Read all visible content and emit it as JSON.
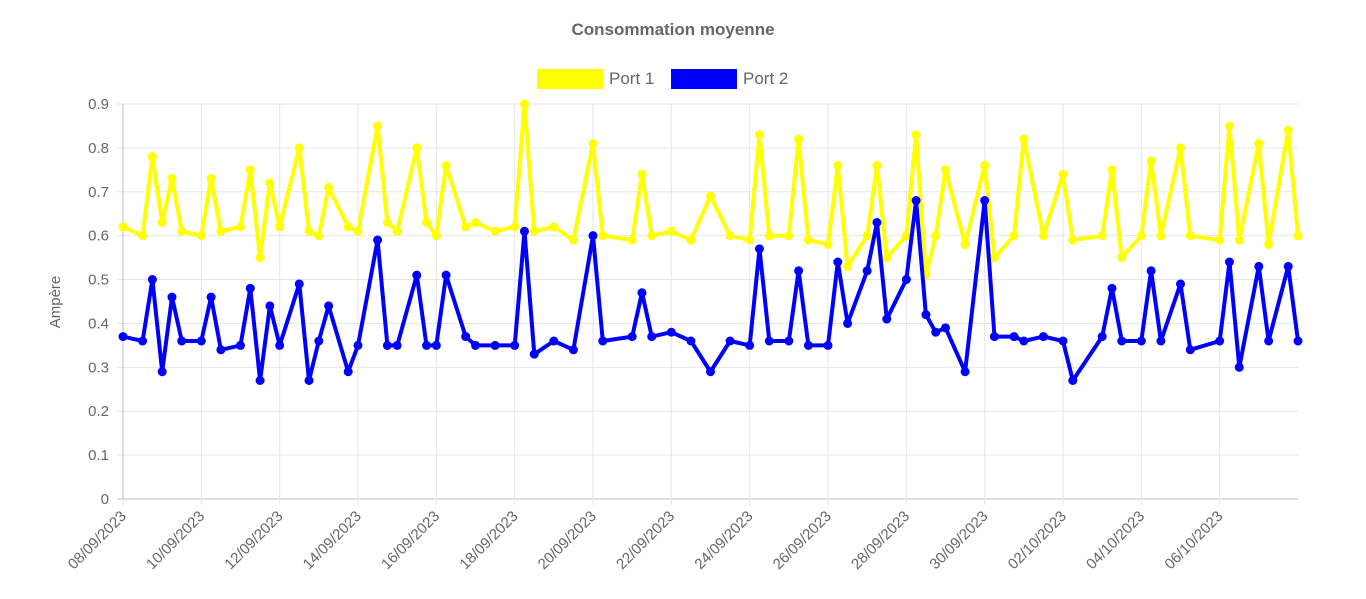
{
  "chart_data": {
    "type": "line",
    "title": "Consommation moyenne",
    "xlabel": "",
    "ylabel": "Ampère",
    "ylim": [
      0,
      0.9
    ],
    "y_ticks": [
      "0",
      "0.1",
      "0.2",
      "0.3",
      "0.4",
      "0.5",
      "0.6",
      "0.7",
      "0.8",
      "0.9"
    ],
    "x_range": [
      "2023-09-08",
      "2023-10-08"
    ],
    "x_tick_labels": [
      "08/09/2023",
      "10/09/2023",
      "12/09/2023",
      "14/09/2023",
      "16/09/2023",
      "18/09/2023",
      "20/09/2023",
      "22/09/2023",
      "24/09/2023",
      "26/09/2023",
      "28/09/2023",
      "30/09/2023",
      "02/10/2023",
      "04/10/2023",
      "06/10/2023"
    ],
    "grid": true,
    "legend_position": "top",
    "series": [
      {
        "name": "Port 1",
        "color": "#ffff00",
        "points": [
          {
            "x": "2023-09-08",
            "y": 0.62
          },
          {
            "x": "2023-09-08T12:00",
            "y": 0.6
          },
          {
            "x": "2023-09-08T18:00",
            "y": 0.78
          },
          {
            "x": "2023-09-09",
            "y": 0.63
          },
          {
            "x": "2023-09-09T06:00",
            "y": 0.73
          },
          {
            "x": "2023-09-09T12:00",
            "y": 0.61
          },
          {
            "x": "2023-09-10",
            "y": 0.6
          },
          {
            "x": "2023-09-10T06:00",
            "y": 0.73
          },
          {
            "x": "2023-09-10T12:00",
            "y": 0.61
          },
          {
            "x": "2023-09-11",
            "y": 0.62
          },
          {
            "x": "2023-09-11T06:00",
            "y": 0.75
          },
          {
            "x": "2023-09-11T12:00",
            "y": 0.55
          },
          {
            "x": "2023-09-11T18:00",
            "y": 0.72
          },
          {
            "x": "2023-09-12",
            "y": 0.62
          },
          {
            "x": "2023-09-12T12:00",
            "y": 0.8
          },
          {
            "x": "2023-09-12T18:00",
            "y": 0.61
          },
          {
            "x": "2023-09-13",
            "y": 0.6
          },
          {
            "x": "2023-09-13T06:00",
            "y": 0.71
          },
          {
            "x": "2023-09-13T18:00",
            "y": 0.62
          },
          {
            "x": "2023-09-14",
            "y": 0.61
          },
          {
            "x": "2023-09-14T12:00",
            "y": 0.85
          },
          {
            "x": "2023-09-14T18:00",
            "y": 0.63
          },
          {
            "x": "2023-09-15",
            "y": 0.61
          },
          {
            "x": "2023-09-15T12:00",
            "y": 0.8
          },
          {
            "x": "2023-09-15T18:00",
            "y": 0.63
          },
          {
            "x": "2023-09-16",
            "y": 0.6
          },
          {
            "x": "2023-09-16T06:00",
            "y": 0.76
          },
          {
            "x": "2023-09-16T18:00",
            "y": 0.62
          },
          {
            "x": "2023-09-17",
            "y": 0.63
          },
          {
            "x": "2023-09-17T12:00",
            "y": 0.61
          },
          {
            "x": "2023-09-18",
            "y": 0.62
          },
          {
            "x": "2023-09-18T06:00",
            "y": 0.9
          },
          {
            "x": "2023-09-18T12:00",
            "y": 0.61
          },
          {
            "x": "2023-09-19",
            "y": 0.62
          },
          {
            "x": "2023-09-19T12:00",
            "y": 0.59
          },
          {
            "x": "2023-09-20",
            "y": 0.81
          },
          {
            "x": "2023-09-20T06:00",
            "y": 0.6
          },
          {
            "x": "2023-09-21",
            "y": 0.59
          },
          {
            "x": "2023-09-21T06:00",
            "y": 0.74
          },
          {
            "x": "2023-09-21T12:00",
            "y": 0.6
          },
          {
            "x": "2023-09-22",
            "y": 0.61
          },
          {
            "x": "2023-09-22T12:00",
            "y": 0.59
          },
          {
            "x": "2023-09-23",
            "y": 0.69
          },
          {
            "x": "2023-09-23T12:00",
            "y": 0.6
          },
          {
            "x": "2023-09-24",
            "y": 0.59
          },
          {
            "x": "2023-09-24T06:00",
            "y": 0.83
          },
          {
            "x": "2023-09-24T12:00",
            "y": 0.6
          },
          {
            "x": "2023-09-25",
            "y": 0.6
          },
          {
            "x": "2023-09-25T06:00",
            "y": 0.82
          },
          {
            "x": "2023-09-25T12:00",
            "y": 0.59
          },
          {
            "x": "2023-09-26",
            "y": 0.58
          },
          {
            "x": "2023-09-26T06:00",
            "y": 0.76
          },
          {
            "x": "2023-09-26T12:00",
            "y": 0.53
          },
          {
            "x": "2023-09-27",
            "y": 0.6
          },
          {
            "x": "2023-09-27T06:00",
            "y": 0.76
          },
          {
            "x": "2023-09-27T12:00",
            "y": 0.55
          },
          {
            "x": "2023-09-28",
            "y": 0.6
          },
          {
            "x": "2023-09-28T06:00",
            "y": 0.83
          },
          {
            "x": "2023-09-28T12:00",
            "y": 0.51
          },
          {
            "x": "2023-09-28T18:00",
            "y": 0.6
          },
          {
            "x": "2023-09-29",
            "y": 0.75
          },
          {
            "x": "2023-09-29T12:00",
            "y": 0.58
          },
          {
            "x": "2023-09-30",
            "y": 0.76
          },
          {
            "x": "2023-09-30T06:00",
            "y": 0.55
          },
          {
            "x": "2023-09-30T18:00",
            "y": 0.6
          },
          {
            "x": "2023-10-01",
            "y": 0.82
          },
          {
            "x": "2023-10-01T12:00",
            "y": 0.6
          },
          {
            "x": "2023-10-02",
            "y": 0.74
          },
          {
            "x": "2023-10-02T06:00",
            "y": 0.59
          },
          {
            "x": "2023-10-03",
            "y": 0.6
          },
          {
            "x": "2023-10-03T06:00",
            "y": 0.75
          },
          {
            "x": "2023-10-03T12:00",
            "y": 0.55
          },
          {
            "x": "2023-10-04",
            "y": 0.6
          },
          {
            "x": "2023-10-04T06:00",
            "y": 0.77
          },
          {
            "x": "2023-10-04T12:00",
            "y": 0.6
          },
          {
            "x": "2023-10-05",
            "y": 0.8
          },
          {
            "x": "2023-10-05T06:00",
            "y": 0.6
          },
          {
            "x": "2023-10-06",
            "y": 0.59
          },
          {
            "x": "2023-10-06T06:00",
            "y": 0.85
          },
          {
            "x": "2023-10-06T12:00",
            "y": 0.59
          },
          {
            "x": "2023-10-07",
            "y": 0.81
          },
          {
            "x": "2023-10-07T06:00",
            "y": 0.58
          },
          {
            "x": "2023-10-07T18:00",
            "y": 0.84
          },
          {
            "x": "2023-10-08",
            "y": 0.6
          }
        ]
      },
      {
        "name": "Port 2",
        "color": "#0000ff",
        "points": [
          {
            "x": "2023-09-08",
            "y": 0.37
          },
          {
            "x": "2023-09-08T12:00",
            "y": 0.36
          },
          {
            "x": "2023-09-08T18:00",
            "y": 0.5
          },
          {
            "x": "2023-09-09",
            "y": 0.29
          },
          {
            "x": "2023-09-09T06:00",
            "y": 0.46
          },
          {
            "x": "2023-09-09T12:00",
            "y": 0.36
          },
          {
            "x": "2023-09-10",
            "y": 0.36
          },
          {
            "x": "2023-09-10T06:00",
            "y": 0.46
          },
          {
            "x": "2023-09-10T12:00",
            "y": 0.34
          },
          {
            "x": "2023-09-11",
            "y": 0.35
          },
          {
            "x": "2023-09-11T06:00",
            "y": 0.48
          },
          {
            "x": "2023-09-11T12:00",
            "y": 0.27
          },
          {
            "x": "2023-09-11T18:00",
            "y": 0.44
          },
          {
            "x": "2023-09-12",
            "y": 0.35
          },
          {
            "x": "2023-09-12T12:00",
            "y": 0.49
          },
          {
            "x": "2023-09-12T18:00",
            "y": 0.27
          },
          {
            "x": "2023-09-13",
            "y": 0.36
          },
          {
            "x": "2023-09-13T06:00",
            "y": 0.44
          },
          {
            "x": "2023-09-13T18:00",
            "y": 0.29
          },
          {
            "x": "2023-09-14",
            "y": 0.35
          },
          {
            "x": "2023-09-14T12:00",
            "y": 0.59
          },
          {
            "x": "2023-09-14T18:00",
            "y": 0.35
          },
          {
            "x": "2023-09-15",
            "y": 0.35
          },
          {
            "x": "2023-09-15T12:00",
            "y": 0.51
          },
          {
            "x": "2023-09-15T18:00",
            "y": 0.35
          },
          {
            "x": "2023-09-16",
            "y": 0.35
          },
          {
            "x": "2023-09-16T06:00",
            "y": 0.51
          },
          {
            "x": "2023-09-16T18:00",
            "y": 0.37
          },
          {
            "x": "2023-09-17",
            "y": 0.35
          },
          {
            "x": "2023-09-17T12:00",
            "y": 0.35
          },
          {
            "x": "2023-09-18",
            "y": 0.35
          },
          {
            "x": "2023-09-18T06:00",
            "y": 0.61
          },
          {
            "x": "2023-09-18T12:00",
            "y": 0.33
          },
          {
            "x": "2023-09-19",
            "y": 0.36
          },
          {
            "x": "2023-09-19T12:00",
            "y": 0.34
          },
          {
            "x": "2023-09-20",
            "y": 0.6
          },
          {
            "x": "2023-09-20T06:00",
            "y": 0.36
          },
          {
            "x": "2023-09-21",
            "y": 0.37
          },
          {
            "x": "2023-09-21T06:00",
            "y": 0.47
          },
          {
            "x": "2023-09-21T12:00",
            "y": 0.37
          },
          {
            "x": "2023-09-22",
            "y": 0.38
          },
          {
            "x": "2023-09-22T12:00",
            "y": 0.36
          },
          {
            "x": "2023-09-23",
            "y": 0.29
          },
          {
            "x": "2023-09-23T12:00",
            "y": 0.36
          },
          {
            "x": "2023-09-24",
            "y": 0.35
          },
          {
            "x": "2023-09-24T06:00",
            "y": 0.57
          },
          {
            "x": "2023-09-24T12:00",
            "y": 0.36
          },
          {
            "x": "2023-09-25",
            "y": 0.36
          },
          {
            "x": "2023-09-25T06:00",
            "y": 0.52
          },
          {
            "x": "2023-09-25T12:00",
            "y": 0.35
          },
          {
            "x": "2023-09-26",
            "y": 0.35
          },
          {
            "x": "2023-09-26T06:00",
            "y": 0.54
          },
          {
            "x": "2023-09-26T12:00",
            "y": 0.4
          },
          {
            "x": "2023-09-27",
            "y": 0.52
          },
          {
            "x": "2023-09-27T06:00",
            "y": 0.63
          },
          {
            "x": "2023-09-27T12:00",
            "y": 0.41
          },
          {
            "x": "2023-09-28",
            "y": 0.5
          },
          {
            "x": "2023-09-28T06:00",
            "y": 0.68
          },
          {
            "x": "2023-09-28T12:00",
            "y": 0.42
          },
          {
            "x": "2023-09-28T18:00",
            "y": 0.38
          },
          {
            "x": "2023-09-29",
            "y": 0.39
          },
          {
            "x": "2023-09-29T12:00",
            "y": 0.29
          },
          {
            "x": "2023-09-30",
            "y": 0.68
          },
          {
            "x": "2023-09-30T06:00",
            "y": 0.37
          },
          {
            "x": "2023-09-30T18:00",
            "y": 0.37
          },
          {
            "x": "2023-10-01",
            "y": 0.36
          },
          {
            "x": "2023-10-01T12:00",
            "y": 0.37
          },
          {
            "x": "2023-10-02",
            "y": 0.36
          },
          {
            "x": "2023-10-02T06:00",
            "y": 0.27
          },
          {
            "x": "2023-10-03",
            "y": 0.37
          },
          {
            "x": "2023-10-03T06:00",
            "y": 0.48
          },
          {
            "x": "2023-10-03T12:00",
            "y": 0.36
          },
          {
            "x": "2023-10-04",
            "y": 0.36
          },
          {
            "x": "2023-10-04T06:00",
            "y": 0.52
          },
          {
            "x": "2023-10-04T12:00",
            "y": 0.36
          },
          {
            "x": "2023-10-05",
            "y": 0.49
          },
          {
            "x": "2023-10-05T06:00",
            "y": 0.34
          },
          {
            "x": "2023-10-06",
            "y": 0.36
          },
          {
            "x": "2023-10-06T06:00",
            "y": 0.54
          },
          {
            "x": "2023-10-06T12:00",
            "y": 0.3
          },
          {
            "x": "2023-10-07",
            "y": 0.53
          },
          {
            "x": "2023-10-07T06:00",
            "y": 0.36
          },
          {
            "x": "2023-10-07T18:00",
            "y": 0.53
          },
          {
            "x": "2023-10-08",
            "y": 0.36
          }
        ]
      }
    ]
  }
}
